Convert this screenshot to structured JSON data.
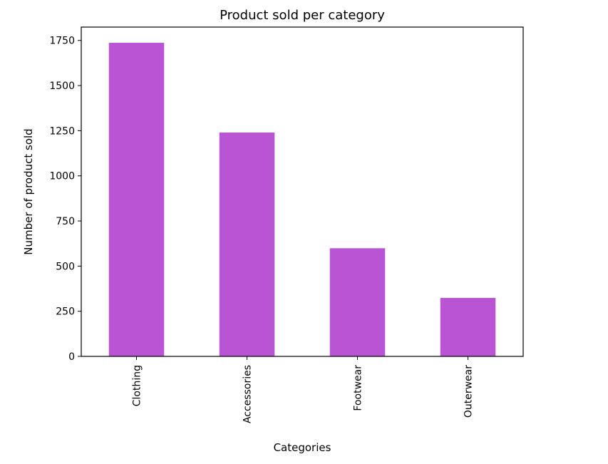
{
  "chart_data": {
    "type": "bar",
    "title": "Product sold per category",
    "xlabel": "Categories",
    "ylabel": "Number of product sold",
    "categories": [
      "Clothing",
      "Accessories",
      "Footwear",
      "Outerwear"
    ],
    "values": [
      1737,
      1240,
      599,
      324
    ],
    "ylim": [
      0,
      1824
    ],
    "yticks": [
      0,
      250,
      500,
      750,
      1000,
      1250,
      1500,
      1750
    ],
    "ytick_labels": [
      "0",
      "250",
      "500",
      "750",
      "1000",
      "1250",
      "1500",
      "1750"
    ],
    "bar_color": "#b955d4",
    "grid": false,
    "legend": "none"
  }
}
